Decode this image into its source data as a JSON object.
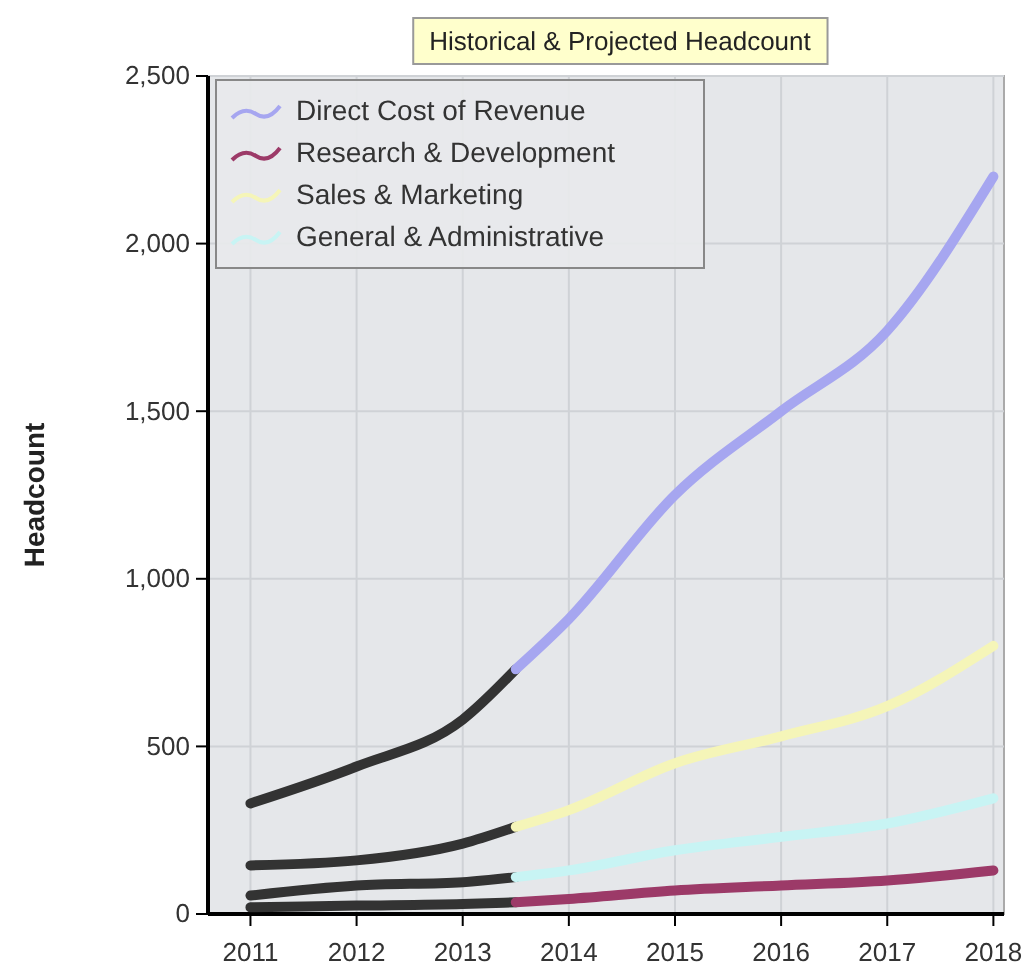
{
  "chart_data": {
    "type": "line",
    "title": "Historical & Projected Headcount",
    "ylabel": "Headcount",
    "xlim": [
      2010.6,
      2018.1
    ],
    "xticks": [
      2011,
      2012,
      2013,
      2014,
      2015,
      2016,
      2017,
      2018
    ],
    "ylim": [
      0,
      2500
    ],
    "yticks": [
      0,
      {
        "value": 500,
        "label": "500"
      },
      {
        "value": 1000,
        "label": "1,000"
      },
      {
        "value": 1500,
        "label": "1,500"
      },
      {
        "value": 2000,
        "label": "2,000"
      },
      {
        "value": 2500,
        "label": "2,500"
      }
    ],
    "grid": true,
    "legend": "top left",
    "marker": "none",
    "line_style": "solid",
    "series": [
      {
        "color": "#333333",
        "x": [
          2011,
          2012,
          2013,
          2013.5
        ],
        "values": [
          330,
          440,
          580,
          730
        ]
      },
      {
        "color": "#333333",
        "x": [
          2011,
          2012,
          2013,
          2013.5
        ],
        "values": [
          20,
          25,
          30,
          35
        ]
      },
      {
        "color": "#333333",
        "x": [
          2011,
          2012,
          2013,
          2013.5
        ],
        "values": [
          145,
          160,
          210,
          260
        ]
      },
      {
        "color": "#333333",
        "x": [
          2011,
          2012,
          2013,
          2013.5
        ],
        "values": [
          55,
          85,
          95,
          110
        ]
      },
      {
        "name": "Direct Cost of Revenue",
        "color": "#a6a6f0",
        "x": [
          2013.5,
          2014,
          2015,
          2016,
          2017,
          2018
        ],
        "values": [
          730,
          880,
          1250,
          1500,
          1740,
          2200
        ]
      },
      {
        "name": "Research & Development",
        "color": "#9c3a68",
        "x": [
          2013.5,
          2014,
          2015,
          2016,
          2017,
          2018
        ],
        "values": [
          35,
          45,
          70,
          85,
          100,
          130
        ]
      },
      {
        "name": "Sales & Marketing",
        "color": "#f5f5b8",
        "x": [
          2013.5,
          2014,
          2015,
          2016,
          2017,
          2018
        ],
        "values": [
          260,
          310,
          450,
          530,
          620,
          800
        ]
      },
      {
        "name": "General & Administrative",
        "color": "#c8f4f4",
        "x": [
          2013.5,
          2014,
          2015,
          2016,
          2017,
          2018
        ],
        "values": [
          110,
          130,
          190,
          230,
          270,
          345
        ]
      }
    ]
  }
}
